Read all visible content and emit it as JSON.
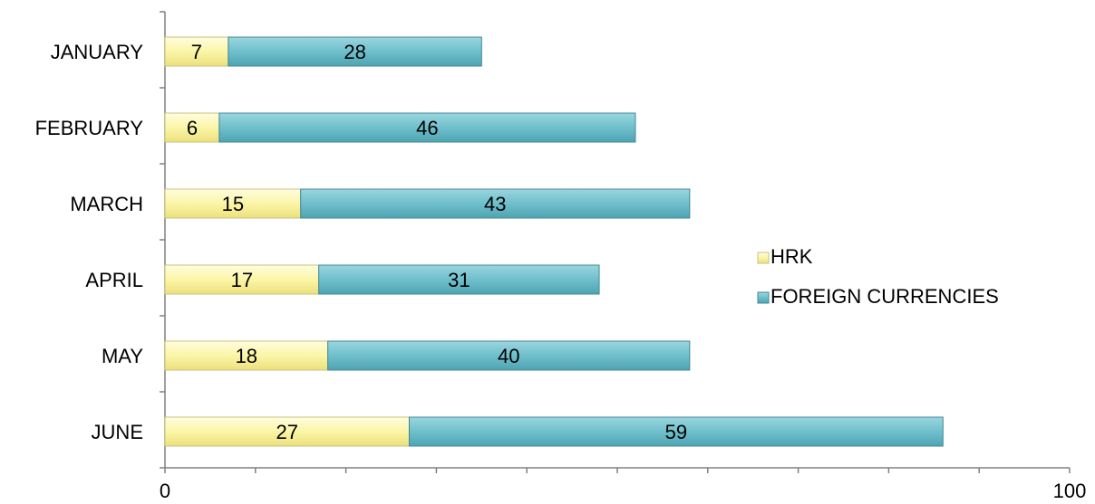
{
  "chart_data": {
    "type": "bar",
    "orientation": "horizontal",
    "stacked": true,
    "categories": [
      "JANUARY",
      "FEBRUARY",
      "MARCH",
      "APRIL",
      "MAY",
      "JUNE"
    ],
    "series": [
      {
        "name": "HRK",
        "values": [
          7,
          6,
          15,
          17,
          18,
          27
        ],
        "color": "#fbf5a6"
      },
      {
        "name": "FOREIGN CURRENCIES",
        "values": [
          28,
          46,
          43,
          31,
          40,
          59
        ],
        "color": "#6fbfcc"
      }
    ],
    "xlim": [
      0,
      100
    ],
    "x_tick_labels": [
      "0",
      "100"
    ],
    "title": "",
    "xlabel": "",
    "ylabel": "",
    "grid": false,
    "legend_position": "right"
  }
}
